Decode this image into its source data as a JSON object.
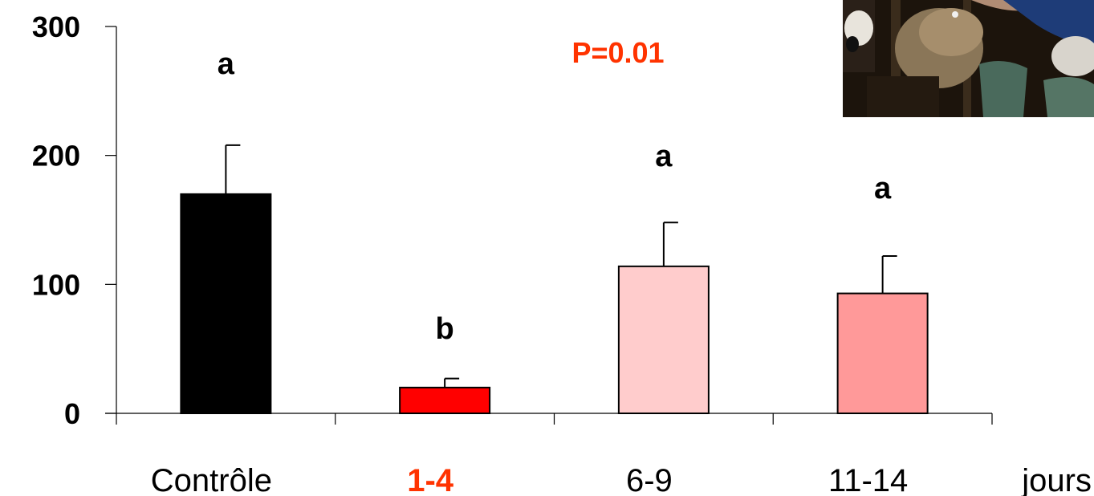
{
  "chart_data": {
    "type": "bar",
    "categories": [
      "Contrôle",
      "1-4",
      "6-9",
      "11-14"
    ],
    "x_unit_label": "jours",
    "values": [
      170,
      20,
      114,
      93
    ],
    "error_upper": [
      208,
      27,
      148,
      122
    ],
    "significance_letters": [
      "a",
      "b",
      "a",
      "a"
    ],
    "bar_colors": [
      "#000000",
      "#ff0000",
      "#ffcccc",
      "#ff9999"
    ],
    "highlight_category_color": "#ff3300",
    "annotation": "P=0.01",
    "annotation_color": "#ff3300",
    "ylim": [
      0,
      300
    ],
    "yticks": [
      "0",
      "100",
      "200",
      "300"
    ],
    "grid": false,
    "legend": "none",
    "title": "",
    "xlabel": "",
    "ylabel": ""
  },
  "photo": {
    "icon": "cow-photo"
  }
}
